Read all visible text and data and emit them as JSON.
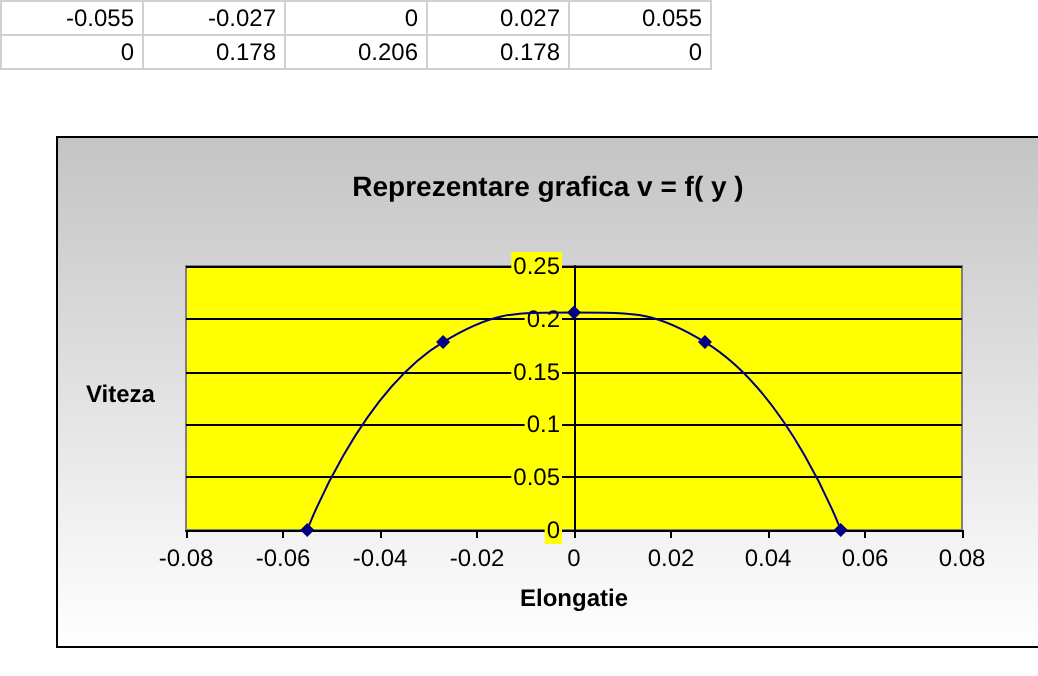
{
  "chart_data": {
    "type": "line",
    "title": "Reprezentare grafica v = f( y )",
    "xlabel": "Elongatie",
    "ylabel": "Viteza",
    "annotations": [
      "-0.055",
      "-0.027",
      "0",
      "0.027",
      "0.055",
      "0",
      "0.178",
      "0.206",
      "0.178",
      "0"
    ],
    "x": [
      -0.055,
      -0.027,
      0,
      0.027,
      0.055
    ],
    "series": [
      {
        "color": "#000080",
        "values": [
          0,
          0.178,
          0.206,
          0.178,
          0
        ]
      }
    ],
    "xlim": [
      -0.08,
      0.08
    ],
    "xticks": [
      -0.08,
      -0.06,
      -0.04,
      -0.02,
      0,
      0.02,
      0.04,
      0.06,
      0.08
    ],
    "ylim": [
      0,
      0.25
    ],
    "yticks": [
      0,
      0.05,
      0.1,
      0.15,
      0.2,
      0.25
    ],
    "grid": "y",
    "marker": "diamond",
    "line_style": "solid"
  }
}
